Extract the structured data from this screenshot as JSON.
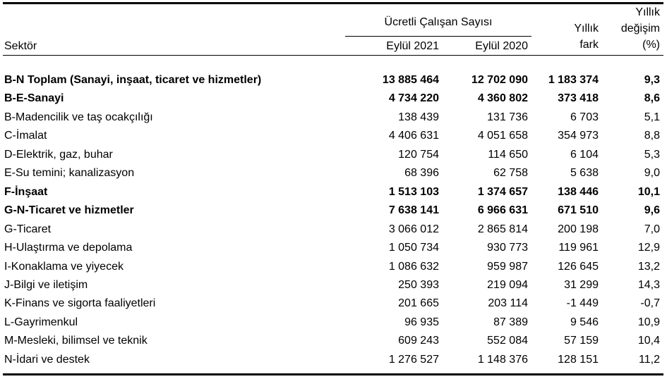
{
  "colors": {
    "background": "#ffffff",
    "text": "#000000",
    "rule": "#000000"
  },
  "table": {
    "sector_header": "Sektör",
    "group_header": "Ücretli Çalışan Sayısı",
    "col_2021": "Eylül 2021",
    "col_2020": "Eylül 2020",
    "fark_header": "Yıllık\nfark",
    "degisim_header": "Yıllık\ndeğişim\n(%)",
    "rows": [
      {
        "sector": "B-N Toplam (Sanayi, inşaat, ticaret ve hizmetler)",
        "eylul_2021": "13 885 464",
        "eylul_2020": "12 702 090",
        "yillik_fark": "1 183 374",
        "yillik_degisim": "9,3",
        "bold": true
      },
      {
        "sector": "B-E-Sanayi",
        "eylul_2021": "4 734 220",
        "eylul_2020": "4 360 802",
        "yillik_fark": "373 418",
        "yillik_degisim": "8,6",
        "bold": true
      },
      {
        "sector": "B-Madencilik ve taş ocakçılığı",
        "eylul_2021": "138 439",
        "eylul_2020": "131 736",
        "yillik_fark": "6 703",
        "yillik_degisim": "5,1",
        "bold": false
      },
      {
        "sector": "C-İmalat",
        "eylul_2021": "4 406 631",
        "eylul_2020": "4 051 658",
        "yillik_fark": "354 973",
        "yillik_degisim": "8,8",
        "bold": false
      },
      {
        "sector": "D-Elektrik, gaz, buhar",
        "eylul_2021": "120 754",
        "eylul_2020": "114 650",
        "yillik_fark": "6 104",
        "yillik_degisim": "5,3",
        "bold": false
      },
      {
        "sector": "E-Su temini; kanalizasyon",
        "eylul_2021": "68 396",
        "eylul_2020": "62 758",
        "yillik_fark": "5 638",
        "yillik_degisim": "9,0",
        "bold": false
      },
      {
        "sector": "F-İnşaat",
        "eylul_2021": "1 513 103",
        "eylul_2020": "1 374 657",
        "yillik_fark": "138 446",
        "yillik_degisim": "10,1",
        "bold": true
      },
      {
        "sector": "G-N-Ticaret ve hizmetler",
        "eylul_2021": "7 638 141",
        "eylul_2020": "6 966 631",
        "yillik_fark": "671 510",
        "yillik_degisim": "9,6",
        "bold": true
      },
      {
        "sector": "G-Ticaret",
        "eylul_2021": "3 066 012",
        "eylul_2020": "2 865 814",
        "yillik_fark": "200 198",
        "yillik_degisim": "7,0",
        "bold": false
      },
      {
        "sector": "H-Ulaştırma ve depolama",
        "eylul_2021": "1 050 734",
        "eylul_2020": "930 773",
        "yillik_fark": "119 961",
        "yillik_degisim": "12,9",
        "bold": false
      },
      {
        "sector": "I-Konaklama ve yiyecek",
        "eylul_2021": "1 086 632",
        "eylul_2020": "959 987",
        "yillik_fark": "126 645",
        "yillik_degisim": "13,2",
        "bold": false
      },
      {
        "sector": "J-Bilgi ve iletişim",
        "eylul_2021": "250 393",
        "eylul_2020": "219 094",
        "yillik_fark": "31 299",
        "yillik_degisim": "14,3",
        "bold": false
      },
      {
        "sector": "K-Finans ve sigorta faaliyetleri",
        "eylul_2021": "201 665",
        "eylul_2020": "203 114",
        "yillik_fark": "-1 449",
        "yillik_degisim": "-0,7",
        "bold": false
      },
      {
        "sector": "L-Gayrimenkul",
        "eylul_2021": "96 935",
        "eylul_2020": "87 389",
        "yillik_fark": "9 546",
        "yillik_degisim": "10,9",
        "bold": false
      },
      {
        "sector": "M-Mesleki, bilimsel ve teknik",
        "eylul_2021": "609 243",
        "eylul_2020": "552 084",
        "yillik_fark": "57 159",
        "yillik_degisim": "10,4",
        "bold": false
      },
      {
        "sector": "N-İdari ve destek",
        "eylul_2021": "1 276 527",
        "eylul_2020": "1 148 376",
        "yillik_fark": "128 151",
        "yillik_degisim": "11,2",
        "bold": false
      }
    ]
  }
}
